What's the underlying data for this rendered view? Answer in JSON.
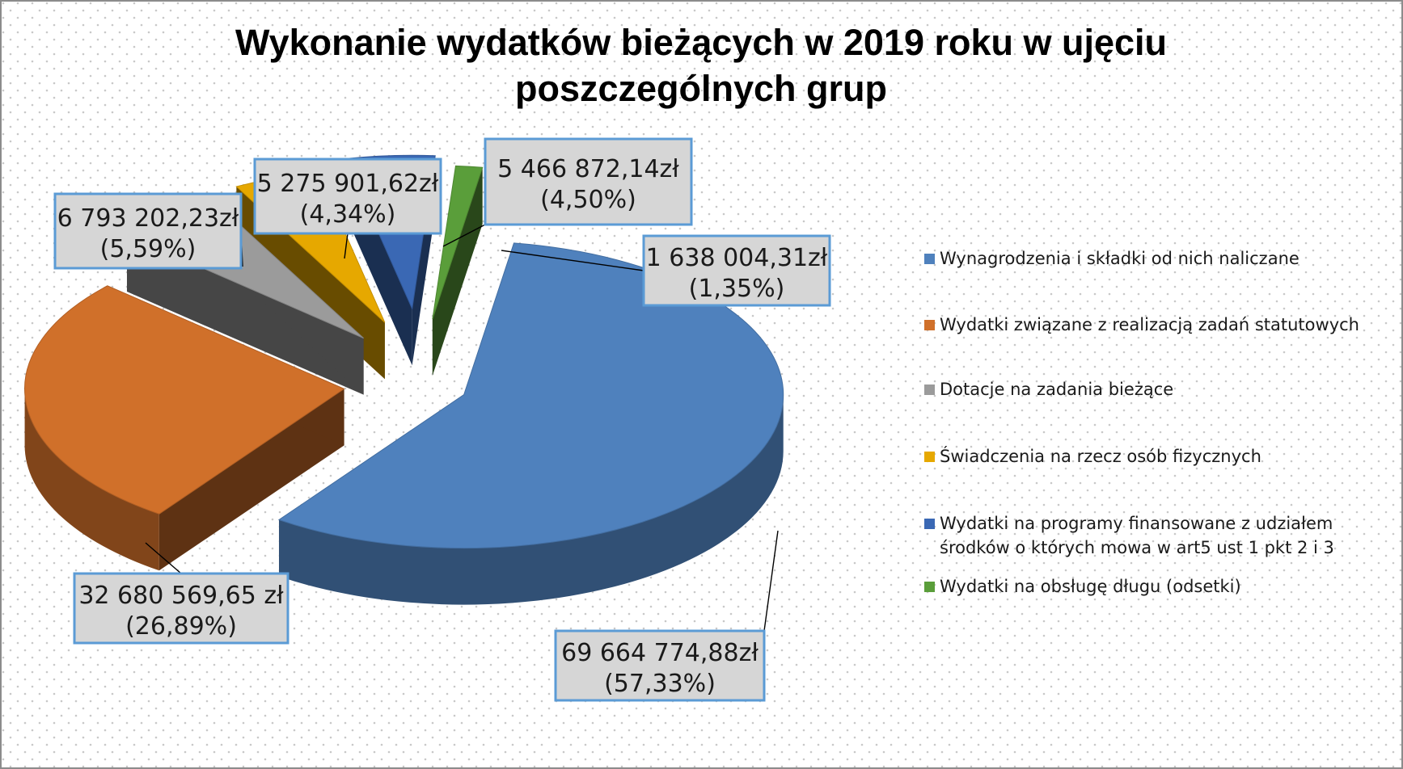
{
  "chart_data": {
    "type": "pie",
    "title": "Wykonanie wydatków bieżących w 2019 roku w ujęciu poszczególnych grup",
    "title_lines": [
      "Wykonanie wydatków bieżących w 2019 roku w ujęciu",
      "poszczególnych grup"
    ],
    "legend_position": "right",
    "three_d": true,
    "exploded": true,
    "slices": [
      {
        "label": "Wynagrodzenia i składki od nich naliczane",
        "value": 69664774.88,
        "percent": 57.33,
        "value_label": "69 664 774,88zł",
        "percent_label": "(57,33%)",
        "color": "#4f81bd"
      },
      {
        "label": "Wydatki związane z realizacją zadań statutowych",
        "value": 32680569.65,
        "percent": 26.89,
        "value_label": "32 680 569,65 zł",
        "percent_label": "(26,89%)",
        "color": "#d0702a"
      },
      {
        "label": "Dotacje na zadania bieżące",
        "value": 6793202.23,
        "percent": 5.59,
        "value_label": "6 793 202,23zł",
        "percent_label": "(5,59%)",
        "color": "#9b9b9b"
      },
      {
        "label": "Świadczenia na rzecz osób fizycznych",
        "value": 5275901.62,
        "percent": 4.34,
        "value_label": "5 275 901,62zł",
        "percent_label": "(4,34%)",
        "color": "#e6a800"
      },
      {
        "label": "Wydatki na programy finansowane z udziałem środków o których mowa w art5 ust 1 pkt 2 i 3",
        "label_lines": [
          "Wydatki na programy finansowane z udziałem",
          "środków o których mowa w art5 ust 1 pkt 2 i 3"
        ],
        "value": 5466872.14,
        "percent": 4.5,
        "value_label": "5 466 872,14zł",
        "percent_label": "(4,50%)",
        "color": "#3a68b4"
      },
      {
        "label": "Wydatki na obsługę długu (odsetki)",
        "value": 1638004.31,
        "percent": 1.35,
        "value_label": "1 638 004,31zł",
        "percent_label": "(1,35%)",
        "color": "#5a9e3a"
      }
    ]
  }
}
